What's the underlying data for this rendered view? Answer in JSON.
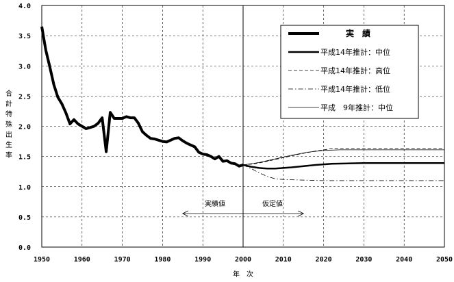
{
  "chart_data": {
    "type": "line",
    "title": "",
    "xlabel": "年　次",
    "ylabel": "合計特殊出生率",
    "xlim": [
      1950,
      2050
    ],
    "ylim": [
      0.0,
      4.0
    ],
    "x_ticks": [
      "1950",
      "1960",
      "1970",
      "1980",
      "1990",
      "2000",
      "2010",
      "2020",
      "2030",
      "2040",
      "2050"
    ],
    "y_ticks": [
      "0.0",
      "0.5",
      "1.0",
      "1.5",
      "2.0",
      "2.5",
      "3.0",
      "3.5",
      "4.0"
    ],
    "grid": true,
    "legend_position": "top-right",
    "annotation": {
      "left": "実績値",
      "right": "仮定値",
      "divider_year": 2000,
      "arrow_from": 1985,
      "arrow_to": 2015
    },
    "series": [
      {
        "name": "実　績",
        "style": "thick",
        "x": [
          1950,
          1951,
          1952,
          1953,
          1954,
          1955,
          1956,
          1957,
          1958,
          1959,
          1960,
          1961,
          1962,
          1963,
          1964,
          1965,
          1966,
          1967,
          1968,
          1969,
          1970,
          1971,
          1972,
          1973,
          1974,
          1975,
          1976,
          1977,
          1978,
          1979,
          1980,
          1981,
          1982,
          1983,
          1984,
          1985,
          1986,
          1987,
          1988,
          1989,
          1990,
          1991,
          1992,
          1993,
          1994,
          1995,
          1996,
          1997,
          1998,
          1999,
          2000
        ],
        "y": [
          3.65,
          3.26,
          2.98,
          2.69,
          2.48,
          2.37,
          2.22,
          2.04,
          2.11,
          2.04,
          2.0,
          1.96,
          1.98,
          2.0,
          2.05,
          2.14,
          1.58,
          2.23,
          2.13,
          2.13,
          2.13,
          2.16,
          2.14,
          2.14,
          2.05,
          1.91,
          1.85,
          1.8,
          1.79,
          1.77,
          1.75,
          1.74,
          1.77,
          1.8,
          1.81,
          1.76,
          1.72,
          1.69,
          1.66,
          1.57,
          1.54,
          1.53,
          1.5,
          1.46,
          1.5,
          1.42,
          1.43,
          1.39,
          1.38,
          1.34,
          1.36
        ]
      },
      {
        "name": "平成14年推計：中位",
        "style": "medium",
        "x": [
          2000,
          2002,
          2004,
          2006,
          2008,
          2010,
          2012,
          2015,
          2018,
          2022,
          2030,
          2040,
          2050
        ],
        "y": [
          1.36,
          1.33,
          1.31,
          1.3,
          1.3,
          1.31,
          1.32,
          1.34,
          1.36,
          1.38,
          1.39,
          1.39,
          1.39
        ]
      },
      {
        "name": "平成14年推計：高位",
        "style": "dashed",
        "x": [
          2000,
          2003,
          2006,
          2010,
          2014,
          2018,
          2022,
          2030,
          2050
        ],
        "y": [
          1.36,
          1.38,
          1.42,
          1.48,
          1.54,
          1.59,
          1.63,
          1.63,
          1.63
        ]
      },
      {
        "name": "平成14年推計：低位",
        "style": "dashdot",
        "x": [
          2000,
          2002,
          2004,
          2006,
          2008,
          2010,
          2014,
          2020,
          2030,
          2050
        ],
        "y": [
          1.36,
          1.3,
          1.23,
          1.17,
          1.13,
          1.12,
          1.11,
          1.1,
          1.1,
          1.1
        ]
      },
      {
        "name": "平成　9年推計：中位",
        "style": "thin",
        "x": [
          2000,
          2004,
          2008,
          2012,
          2016,
          2020,
          2024,
          2030,
          2050
        ],
        "y": [
          1.36,
          1.4,
          1.46,
          1.52,
          1.57,
          1.6,
          1.61,
          1.61,
          1.61
        ]
      }
    ]
  }
}
